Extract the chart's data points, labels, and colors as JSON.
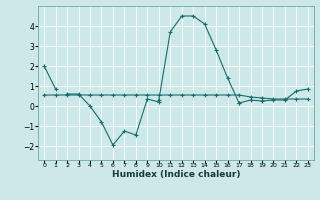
{
  "xlabel": "Humidex (Indice chaleur)",
  "background_color": "#cce8e8",
  "grid_color": "#ffffff",
  "line_color": "#1a6b6b",
  "xlim": [
    -0.5,
    23.5
  ],
  "ylim": [
    -2.7,
    5.0
  ],
  "yticks": [
    -2,
    -1,
    0,
    1,
    2,
    3,
    4
  ],
  "xticks": [
    0,
    1,
    2,
    3,
    4,
    5,
    6,
    7,
    8,
    9,
    10,
    11,
    12,
    13,
    14,
    15,
    16,
    17,
    18,
    19,
    20,
    21,
    22,
    23
  ],
  "series": [
    {
      "x": [
        0,
        1
      ],
      "y": [
        2.0,
        0.85
      ]
    },
    {
      "x": [
        2,
        3,
        4,
        5,
        6,
        7,
        8,
        9,
        10
      ],
      "y": [
        0.6,
        0.6,
        0.0,
        -0.8,
        -1.95,
        -1.25,
        -1.45,
        0.35,
        0.2
      ]
    },
    {
      "x": [
        10,
        11,
        12,
        13,
        14,
        15,
        16,
        17
      ],
      "y": [
        0.3,
        3.7,
        4.5,
        4.5,
        4.1,
        2.8,
        1.4,
        0.15
      ]
    },
    {
      "x": [
        17,
        18,
        19,
        20,
        21,
        22,
        23
      ],
      "y": [
        0.15,
        0.3,
        0.25,
        0.3,
        0.3,
        0.75,
        0.85
      ]
    },
    {
      "x": [
        0,
        1,
        2,
        3,
        4,
        5,
        6,
        7,
        8,
        9,
        10,
        11,
        12,
        13,
        14,
        15,
        16,
        17,
        18,
        19,
        20,
        21,
        22,
        23
      ],
      "y": [
        0.55,
        0.55,
        0.55,
        0.55,
        0.55,
        0.55,
        0.55,
        0.55,
        0.55,
        0.55,
        0.55,
        0.55,
        0.55,
        0.55,
        0.55,
        0.55,
        0.55,
        0.55,
        0.45,
        0.4,
        0.35,
        0.35,
        0.35,
        0.35
      ]
    }
  ]
}
